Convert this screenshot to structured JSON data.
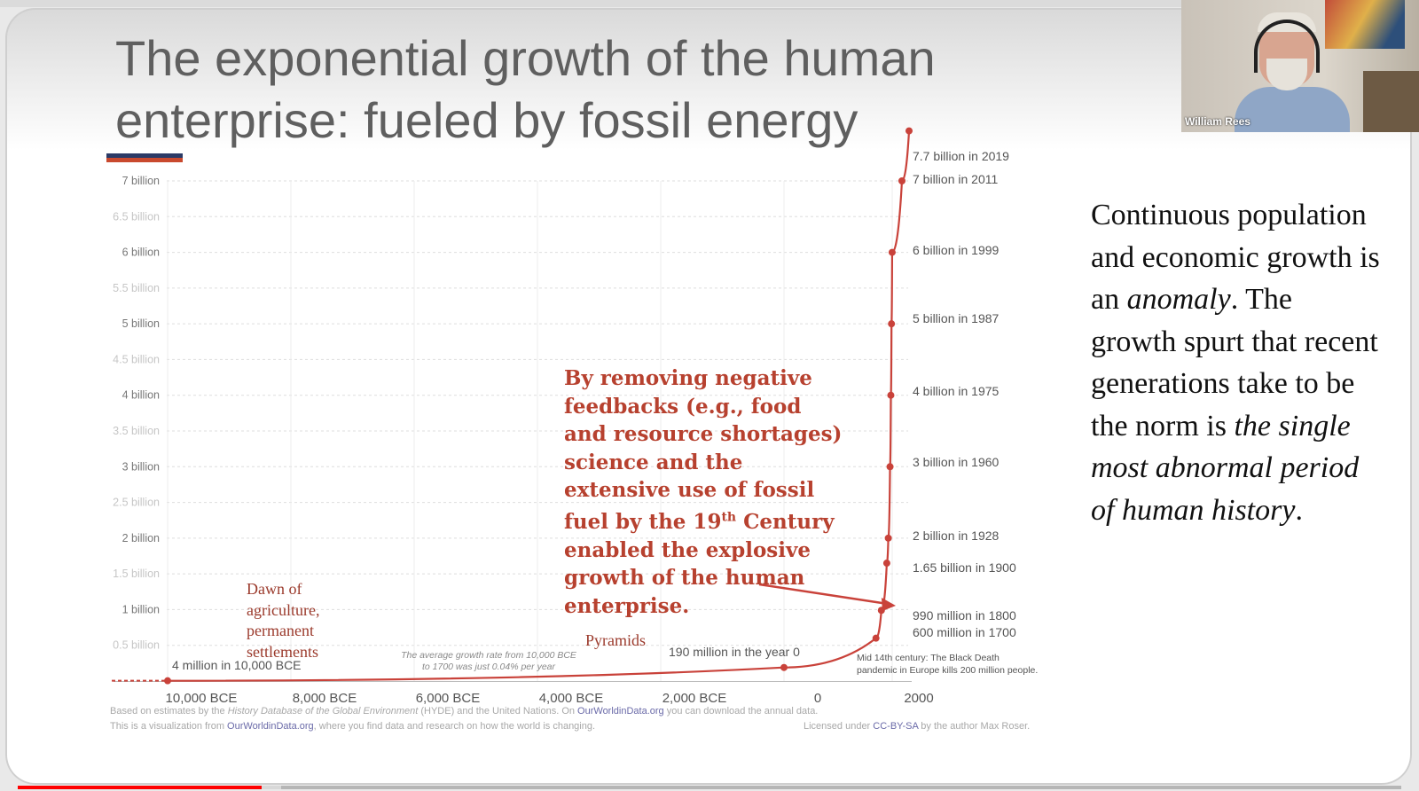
{
  "slide": {
    "title": "The exponential growth of the human enterprise: fueled by fossil energy",
    "accent_colors": [
      "#2b3a66",
      "#c9492e"
    ],
    "annotation": "By removing negative feedbacks (e.g., food and resource shortages) science and the extensive use of fossil fuel by the 19th Century enabled the explosive growth of the human enterprise.",
    "labels": {
      "dawn": "Dawn of agriculture, permanent settlements",
      "pyramids": "Pyramids"
    },
    "side_text": {
      "part1": "Continuous population and economic growth is an ",
      "part2": "anomaly",
      "part3": ". The growth spurt that recent generations take to be the norm is ",
      "part4": "the single most abnormal period of human history",
      "part5": "."
    }
  },
  "chart_data": {
    "type": "line",
    "x": [
      -10000,
      0,
      1700,
      1800,
      1900,
      1928,
      1960,
      1975,
      1987,
      1999,
      2011,
      2019
    ],
    "y": [
      0.004,
      0.19,
      0.6,
      0.99,
      1.65,
      2.0,
      3.0,
      4.0,
      5.0,
      6.0,
      7.0,
      7.7
    ],
    "x_unit": "year",
    "y_unit": "billion people",
    "xlim": [
      -10000,
      2019
    ],
    "ylim": [
      0,
      7.7
    ],
    "series_color": "#c9423a",
    "x_ticks": [
      "10,000 BCE",
      "8,000 BCE",
      "6,000 BCE",
      "4,000 BCE",
      "2,000 BCE",
      "0",
      "2000"
    ],
    "y_ticks": [
      "7 billion",
      "6.5 billion",
      "6 billion",
      "5.5 billion",
      "5 billion",
      "4.5 billion",
      "4 billion",
      "3.5 billion",
      "3 billion",
      "2.5 billion",
      "2 billion",
      "1.5 billion",
      "1 billion",
      "0.5 billion"
    ],
    "point_labels": [
      "4 million in 10,000 BCE",
      "190 million in the year 0",
      "600 million in 1700",
      "990 million in 1800",
      "1.65 billion in 1900",
      "2 billion in 1928",
      "3 billion in 1960",
      "4 billion in 1975",
      "5 billion in 1987",
      "6 billion in 1999",
      "7 billion in 2011",
      "7.7 billion in 2019"
    ],
    "annotations": {
      "growth_rate": "The average growth rate from 10,000 BCE to 1700 was just 0.04% per year",
      "black_death": "Mid 14th century: The Black Death pandemic in Europe kills 200 million people."
    },
    "grid": true
  },
  "footer": {
    "line1_a": "Based on estimates by the ",
    "line1_b": "History Database of the Global Environment",
    "line1_c": " (HYDE) and the United Nations. On ",
    "line1_link": "OurWorldinData.org",
    "line1_d": " you can download the annual data.",
    "line2_a": "This is a visualization from ",
    "line2_link": "OurWorldinData.org",
    "line2_b": ", where you find data and research on how the world is changing.",
    "license_a": "Licensed under ",
    "license_link": "CC-BY-SA",
    "license_b": " by the author Max Roser."
  },
  "webcam": {
    "name": "William Rees"
  }
}
